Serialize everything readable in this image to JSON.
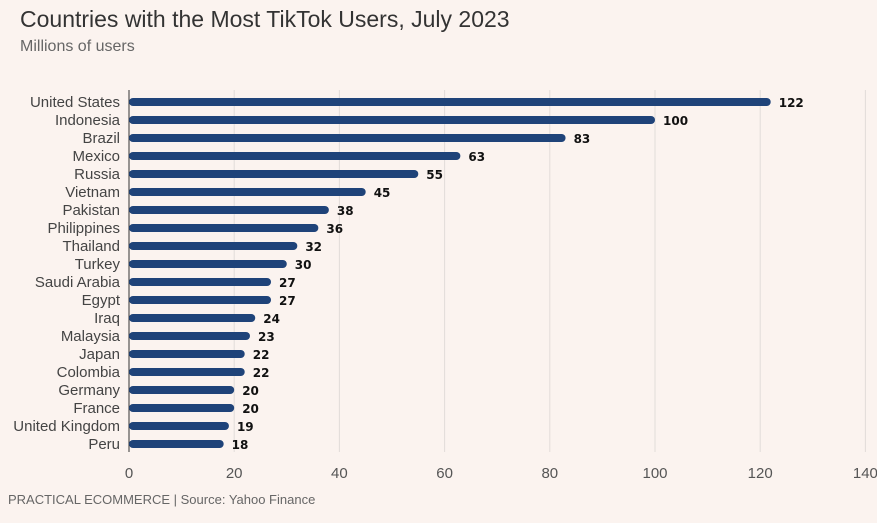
{
  "header": {
    "title": "Countries with the Most TikTok Users, July 2023",
    "subtitle": "Millions of users"
  },
  "footer": {
    "text": "PRACTICAL ECOMMERCE | Source: Yahoo Finance"
  },
  "colors": {
    "bar": "#1f4379",
    "background": "#fbf3ef",
    "grid": "#e2dcd9"
  },
  "chart_data": {
    "type": "bar",
    "orientation": "horizontal",
    "title": "Countries with the Most TikTok Users, July 2023",
    "subtitle": "Millions of users",
    "categories": [
      "United States",
      "Indonesia",
      "Brazil",
      "Mexico",
      "Russia",
      "Vietnam",
      "Pakistan",
      "Philippines",
      "Thailand",
      "Turkey",
      "Saudi Arabia",
      "Egypt",
      "Iraq",
      "Malaysia",
      "Japan",
      "Colombia",
      "Germany",
      "France",
      "United Kingdom",
      "Peru"
    ],
    "values": [
      122,
      100,
      83,
      63,
      55,
      45,
      38,
      36,
      32,
      30,
      27,
      27,
      24,
      23,
      22,
      22,
      20,
      20,
      19,
      18
    ],
    "xlim": [
      0,
      140
    ],
    "xticks": [
      0,
      20,
      40,
      60,
      80,
      100,
      120,
      140
    ],
    "grid": true,
    "data_labels": true
  }
}
